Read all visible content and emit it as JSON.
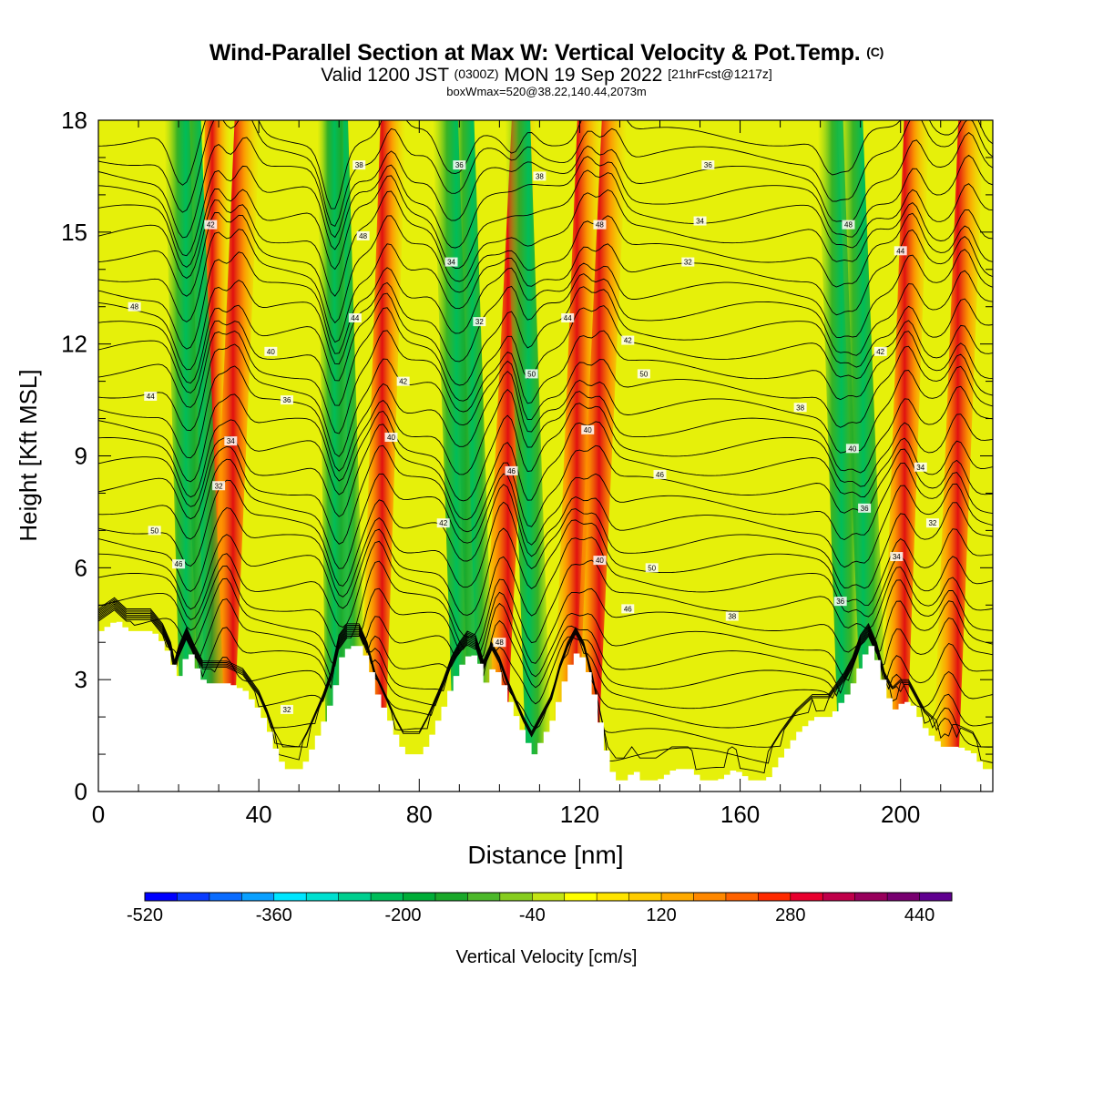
{
  "title": {
    "main": "Wind-Parallel Section at Max W: Vertical Velocity & Pot.Temp.",
    "copyright": "(C)",
    "valid_prefix": "Valid 1200 JST",
    "valid_utc": "(0300Z)",
    "valid_date": "MON 19 Sep 2022",
    "forecast": "[21hrFcst@1217z]",
    "boxinfo": "boxWmax=520@38.22,140.44,2073m"
  },
  "chart_data": {
    "type": "heatmap",
    "xlabel": "Distance [nm]",
    "ylabel": "Height [Kft MSL]",
    "xlim": [
      0,
      223
    ],
    "ylim": [
      0,
      18
    ],
    "x_ticks": [
      0,
      40,
      80,
      120,
      160,
      200
    ],
    "y_ticks": [
      0,
      3,
      6,
      9,
      12,
      15,
      18
    ],
    "colorbar": {
      "label": "Vertical Velocity [cm/s]",
      "min": -520,
      "max": 480,
      "step": 40,
      "tick_values": [
        -520,
        -360,
        -200,
        -40,
        120,
        280,
        440
      ],
      "colors": [
        "#0000ff",
        "#0a3cff",
        "#0a6cff",
        "#0aa0ff",
        "#00e6ff",
        "#00e0d0",
        "#00cf8f",
        "#00bd5a",
        "#00ad38",
        "#1aa82a",
        "#4cb82a",
        "#86cc1e",
        "#c4e414",
        "#ffff00",
        "#ffe400",
        "#ffcc00",
        "#ffaa00",
        "#ff8800",
        "#ff6200",
        "#ff2a00",
        "#e8002e",
        "#c0004a",
        "#98005c",
        "#780070",
        "#600090"
      ]
    },
    "terrain_top_kft": [
      [
        0,
        4.3
      ],
      [
        4,
        4.6
      ],
      [
        7,
        4.3
      ],
      [
        13,
        4.3
      ],
      [
        16,
        3.9
      ],
      [
        18,
        3.4
      ],
      [
        19,
        2.9
      ],
      [
        20,
        3.3
      ],
      [
        22,
        3.8
      ],
      [
        24,
        3.3
      ],
      [
        26,
        2.9
      ],
      [
        32,
        2.9
      ],
      [
        36,
        2.7
      ],
      [
        38,
        2.4
      ],
      [
        40,
        2.1
      ],
      [
        42,
        1.6
      ],
      [
        44,
        1.0
      ],
      [
        46,
        0.6
      ],
      [
        50,
        0.6
      ],
      [
        52,
        1.0
      ],
      [
        54,
        1.5
      ],
      [
        56,
        2.0
      ],
      [
        58,
        2.6
      ],
      [
        60,
        3.6
      ],
      [
        62,
        3.9
      ],
      [
        65,
        3.9
      ],
      [
        67,
        3.4
      ],
      [
        69,
        2.6
      ],
      [
        72,
        1.9
      ],
      [
        74,
        1.4
      ],
      [
        76,
        1.0
      ],
      [
        80,
        1.0
      ],
      [
        82,
        1.4
      ],
      [
        84,
        1.9
      ],
      [
        86,
        2.4
      ],
      [
        88,
        3.0
      ],
      [
        90,
        3.4
      ],
      [
        92,
        3.7
      ],
      [
        94,
        3.6
      ],
      [
        96,
        2.9
      ],
      [
        98,
        3.4
      ],
      [
        100,
        3.0
      ],
      [
        102,
        2.4
      ],
      [
        104,
        1.9
      ],
      [
        106,
        1.4
      ],
      [
        108,
        1.0
      ],
      [
        110,
        1.4
      ],
      [
        113,
        2.0
      ],
      [
        115,
        2.8
      ],
      [
        117,
        3.4
      ],
      [
        119,
        3.8
      ],
      [
        121,
        3.4
      ],
      [
        123,
        2.6
      ],
      [
        125,
        1.6
      ],
      [
        127,
        0.6
      ],
      [
        129,
        0.3
      ],
      [
        131,
        0.3
      ],
      [
        133,
        0.6
      ],
      [
        135,
        0.3
      ],
      [
        137,
        0.3
      ],
      [
        139,
        0.3
      ],
      [
        143,
        0.6
      ],
      [
        147,
        0.6
      ],
      [
        150,
        0.3
      ],
      [
        154,
        0.3
      ],
      [
        158,
        0.6
      ],
      [
        162,
        0.3
      ],
      [
        166,
        0.3
      ],
      [
        170,
        1.0
      ],
      [
        174,
        1.6
      ],
      [
        178,
        2.0
      ],
      [
        182,
        2.0
      ],
      [
        184,
        2.3
      ],
      [
        186,
        2.6
      ],
      [
        188,
        3.0
      ],
      [
        190,
        3.6
      ],
      [
        192,
        3.9
      ],
      [
        194,
        3.4
      ],
      [
        196,
        2.6
      ],
      [
        198,
        2.2
      ],
      [
        200,
        2.4
      ],
      [
        202,
        2.4
      ],
      [
        204,
        2.0
      ],
      [
        206,
        1.6
      ],
      [
        208,
        1.4
      ],
      [
        210,
        1.2
      ],
      [
        214,
        1.2
      ],
      [
        218,
        1.0
      ],
      [
        220,
        0.6
      ],
      [
        223,
        0.6
      ]
    ],
    "updraft_bands_nm": [
      [
        27,
        5
      ],
      [
        30,
        13
      ],
      [
        29,
        -12
      ],
      [
        24,
        -8
      ],
      [
        68,
        10
      ],
      [
        64,
        -9
      ],
      [
        60,
        -4
      ],
      [
        98,
        15
      ],
      [
        96,
        -10
      ],
      [
        92,
        -10
      ],
      [
        110,
        -10
      ],
      [
        116,
        12
      ],
      [
        121,
        14
      ],
      [
        188,
        -10
      ],
      [
        198,
        11
      ],
      [
        194,
        -12
      ],
      [
        211,
        12
      ]
    ],
    "potential_temperature_isentropes_c": [
      32,
      33,
      34,
      35,
      36,
      37,
      38,
      39,
      40,
      41,
      42,
      43,
      44,
      45,
      46,
      47,
      48,
      49,
      50
    ],
    "contour_label_samples": [
      "48",
      "44",
      "42",
      "40",
      "36",
      "34",
      "32",
      "50",
      "46",
      "38"
    ]
  }
}
